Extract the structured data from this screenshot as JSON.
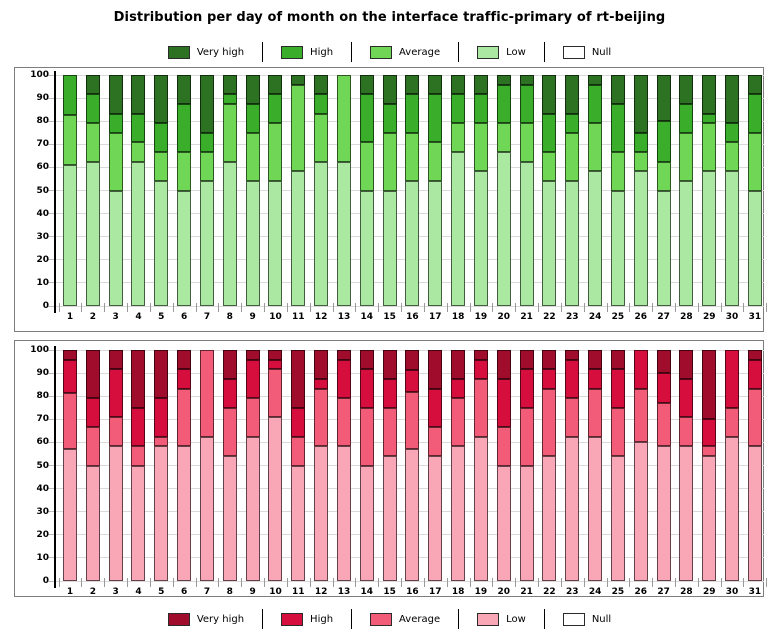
{
  "title": "Distribution per day of month on the interface traffic-primary of rt-beijing",
  "legend_labels": {
    "very_high": "Very high",
    "high": "High",
    "average": "Average",
    "low": "Low",
    "null": "Null"
  },
  "legend_order": [
    "very_high",
    "high",
    "average",
    "low",
    "null"
  ],
  "axes": {
    "ylim": [
      0,
      100
    ],
    "ytick_step": 10,
    "yticks": [
      0,
      10,
      20,
      30,
      40,
      50,
      60,
      70,
      80,
      90,
      100
    ]
  },
  "chart_data": [
    {
      "type": "bar",
      "stacked": true,
      "name": "green-distribution",
      "legend_position": "top",
      "categories": [
        1,
        2,
        3,
        4,
        5,
        6,
        7,
        8,
        9,
        10,
        11,
        12,
        13,
        14,
        15,
        16,
        17,
        18,
        19,
        20,
        21,
        22,
        23,
        24,
        25,
        26,
        27,
        28,
        29,
        30,
        31
      ],
      "xlabel": "",
      "ylabel": "",
      "ylim": [
        0,
        100
      ],
      "grid": true,
      "palette": {
        "very_high": "#2d7222",
        "high": "#3aad2b",
        "average": "#6fd755",
        "low": "#abe8a2",
        "null": "#ffffff"
      },
      "series": [
        {
          "name": "Low",
          "key": "low",
          "values": [
            61,
            62.5,
            50,
            62.5,
            54.2,
            50,
            54.2,
            62.5,
            54.2,
            54.2,
            58.3,
            62.5,
            62.5,
            50,
            50,
            54.2,
            54.2,
            66.7,
            58.3,
            66.7,
            62.5,
            54.2,
            54.2,
            58.3,
            50,
            58.3,
            50,
            54.2,
            58.3,
            58.3,
            50
          ]
        },
        {
          "name": "Average",
          "key": "average",
          "values": [
            21.5,
            16.7,
            25,
            8.3,
            12.5,
            16.7,
            12.5,
            25,
            20.8,
            25,
            37.5,
            20.8,
            37.5,
            20.8,
            25,
            20.8,
            16.6,
            12.5,
            20.9,
            12.5,
            16.7,
            12.5,
            20.8,
            20.9,
            16.7,
            8.4,
            12.5,
            20.8,
            20.9,
            12.5,
            25
          ]
        },
        {
          "name": "High",
          "key": "high",
          "values": [
            17.5,
            12.5,
            8.3,
            12.5,
            12.5,
            20.8,
            8.3,
            4.2,
            12.5,
            12.5,
            0,
            8.4,
            0,
            20.9,
            12.5,
            16.7,
            20.9,
            12.5,
            12.5,
            16.6,
            16.6,
            16.6,
            8.3,
            16.6,
            20.8,
            8.3,
            17.5,
            12.5,
            4.1,
            8.4,
            16.7
          ]
        },
        {
          "name": "Very high",
          "key": "very_high",
          "values": [
            0,
            8.3,
            16.7,
            16.7,
            20.8,
            12.5,
            25,
            8.3,
            12.5,
            8.3,
            4.2,
            8.3,
            0,
            8.3,
            12.5,
            8.3,
            8.3,
            8.3,
            8.3,
            4.2,
            4.2,
            16.7,
            16.7,
            4.2,
            12.5,
            25,
            20,
            12.5,
            16.7,
            20.8,
            8.3
          ]
        },
        {
          "name": "Null",
          "key": "null",
          "values": [
            0,
            0,
            0,
            0,
            0,
            0,
            0,
            0,
            0,
            0,
            0,
            0,
            0,
            0,
            0,
            0,
            0,
            0,
            0,
            0,
            0,
            0,
            0,
            0,
            0,
            0,
            0,
            0,
            0,
            0,
            0
          ]
        }
      ]
    },
    {
      "type": "bar",
      "stacked": true,
      "name": "red-distribution",
      "legend_position": "bottom",
      "categories": [
        1,
        2,
        3,
        4,
        5,
        6,
        7,
        8,
        9,
        10,
        11,
        12,
        13,
        14,
        15,
        16,
        17,
        18,
        19,
        20,
        21,
        22,
        23,
        24,
        25,
        26,
        27,
        28,
        29,
        30,
        31
      ],
      "xlabel": "",
      "ylabel": "",
      "ylim": [
        0,
        100
      ],
      "grid": true,
      "palette": {
        "very_high": "#a00c2c",
        "high": "#d60e3e",
        "average": "#f25c78",
        "low": "#f9a6b6",
        "null": "#ffffff"
      },
      "series": [
        {
          "name": "Low",
          "key": "low",
          "values": [
            57,
            50,
            58.3,
            50,
            58.3,
            58.3,
            62.5,
            54.2,
            62.5,
            70.8,
            50,
            58.3,
            58.3,
            50,
            54.2,
            57,
            54.2,
            58.3,
            62.5,
            50,
            50,
            54.2,
            62.5,
            62.5,
            54.2,
            60,
            58.3,
            58.3,
            54.2,
            62.5,
            58.3
          ]
        },
        {
          "name": "Average",
          "key": "average",
          "values": [
            24.5,
            16.7,
            12.5,
            8.3,
            4.2,
            25,
            37.5,
            20.8,
            16.7,
            20.9,
            12.5,
            25,
            20.9,
            25,
            20.8,
            25,
            12.5,
            20.9,
            25,
            16.7,
            25,
            29.1,
            16.7,
            20.8,
            20.8,
            23.3,
            18.7,
            12.5,
            4.1,
            12.5,
            25
          ]
        },
        {
          "name": "High",
          "key": "high",
          "values": [
            14.3,
            12.5,
            20.9,
            16.7,
            16.7,
            8.4,
            0,
            12.5,
            16.6,
            4.1,
            12.5,
            4.2,
            16.6,
            16.7,
            12.5,
            9.3,
            16.6,
            8.3,
            8.3,
            20.8,
            16.7,
            8.4,
            16.6,
            8.4,
            16.7,
            16.7,
            13,
            16.7,
            11.7,
            25,
            12.5
          ]
        },
        {
          "name": "Very high",
          "key": "very_high",
          "values": [
            4.2,
            20.8,
            8.3,
            25,
            20.8,
            8.3,
            0,
            12.5,
            4.2,
            4.2,
            25,
            12.5,
            4.2,
            8.3,
            12.5,
            8.7,
            16.7,
            12.5,
            4.2,
            12.5,
            8.3,
            8.3,
            4.2,
            8.3,
            8.3,
            0,
            10,
            12.5,
            30,
            0,
            4.2
          ]
        },
        {
          "name": "Null",
          "key": "null",
          "values": [
            0,
            0,
            0,
            0,
            0,
            0,
            0,
            0,
            0,
            0,
            0,
            0,
            0,
            0,
            0,
            0,
            0,
            0,
            0,
            0,
            0,
            0,
            0,
            0,
            0,
            0,
            0,
            0,
            0,
            0,
            0
          ]
        }
      ]
    }
  ]
}
